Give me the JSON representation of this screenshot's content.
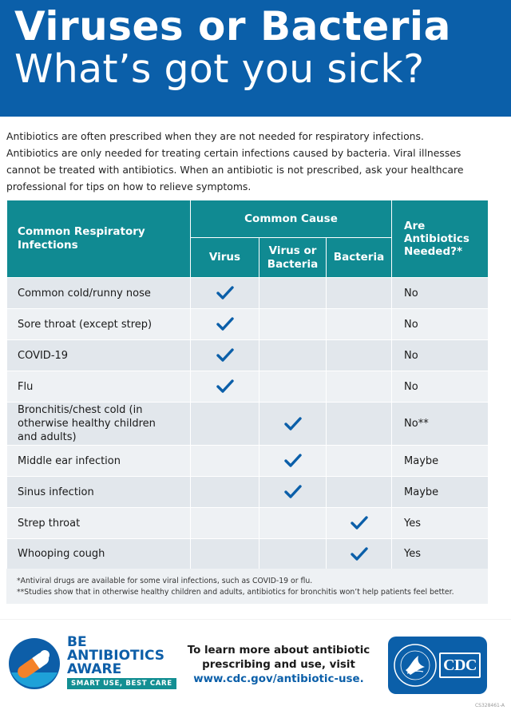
{
  "header": {
    "title_line1": "Viruses or Bacteria",
    "title_line2": "What’s got you sick?"
  },
  "intro": {
    "line1": "Antibiotics are often prescribed when they are not needed for respiratory infections.",
    "line2": "Antibiotics are only needed for treating certain infections caused by bacteria. Viral illnesses",
    "line3": "cannot be treated with antibiotics. When an antibiotic is not prescribed, ask your healthcare",
    "line4": "professional for tips on how to relieve symptoms."
  },
  "table": {
    "col_infection": "Common Respiratory Infections",
    "col_cause": "Common Cause",
    "col_virus": "Virus",
    "col_virus_or_bacteria_1": "Virus or",
    "col_virus_or_bacteria_2": "Bacteria",
    "col_bacteria": "Bacteria",
    "col_needed_1": "Are",
    "col_needed_2": "Antibiotics",
    "col_needed_3": "Needed?*",
    "check_color": "#0b5fa9",
    "rows": [
      {
        "name": "Common cold/runny nose",
        "cause": "virus",
        "answer": "No"
      },
      {
        "name": "Sore throat (except strep)",
        "cause": "virus",
        "answer": "No"
      },
      {
        "name": "COVID-19",
        "cause": "virus",
        "answer": "No"
      },
      {
        "name": "Flu",
        "cause": "virus",
        "answer": "No"
      },
      {
        "name_1": "Bronchitis/chest cold (in",
        "name_2": "otherwise healthy children",
        "name_3": "and adults)",
        "cause": "either",
        "answer": "No**"
      },
      {
        "name": "Middle ear infection",
        "cause": "either",
        "answer": "Maybe"
      },
      {
        "name": "Sinus infection",
        "cause": "either",
        "answer": "Maybe"
      },
      {
        "name": "Strep throat",
        "cause": "bacteria",
        "answer": "Yes"
      },
      {
        "name": "Whooping cough",
        "cause": "bacteria",
        "answer": "Yes"
      }
    ]
  },
  "footnotes": {
    "note1": "*Antiviral drugs are available for some viral infections, such as COVID-19 or flu.",
    "note2": "**Studies show that in otherwise healthy children and adults, antibiotics for bronchitis won’t help patients feel better."
  },
  "footer": {
    "logo_line1": "BE",
    "logo_line2": "ANTIBIOTICS",
    "logo_line3": "AWARE",
    "logo_tagline": "SMART USE, BEST CARE",
    "learn_line1": "To learn more about antibiotic",
    "learn_line2": "prescribing and use, visit",
    "learn_url": "www.cdc.gov/antibiotic-use.",
    "cdc_logo_text": "CDC",
    "doc_code": "CS328461-A"
  },
  "colors": {
    "header_blue": "#0b5fa9",
    "table_teal": "#108a92",
    "row_dark": "#e2e7ec",
    "row_light": "#eef1f4"
  }
}
